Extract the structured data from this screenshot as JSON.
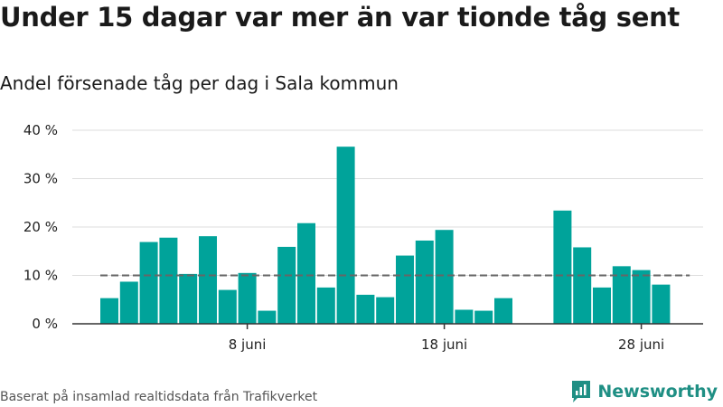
{
  "header": {
    "title": "Under 15 dagar var mer än var tionde tåg sent",
    "subtitle": "Andel försenade tåg per dag i Sala kommun"
  },
  "footer": {
    "source": "Baserat på insamlad realtidsdata från Trafikverket",
    "brand": "Newsworthy"
  },
  "colors": {
    "bar": "#00a39a",
    "reference": "#666666",
    "grid": "#dddddd",
    "brand": "#1f8f84"
  },
  "chart_data": {
    "type": "bar",
    "title": "Under 15 dagar var mer än var tionde tåg sent",
    "subtitle": "Andel försenade tåg per dag i Sala kommun",
    "xlabel": "",
    "ylabel": "",
    "ylim": [
      0,
      40
    ],
    "y_ticks": [
      0,
      10,
      20,
      30,
      40
    ],
    "y_tick_labels": [
      "0 %",
      "10 %",
      "20 %",
      "30 %",
      "40 %"
    ],
    "x_ticks": [
      8,
      18,
      28
    ],
    "x_tick_labels": [
      "8 juni",
      "18 juni",
      "28 juni"
    ],
    "grid": true,
    "reference_line": {
      "value": 10,
      "x_range": [
        1,
        30
      ]
    },
    "series": [
      {
        "day": [
          1,
          2,
          3,
          4,
          5,
          6,
          7,
          8,
          9,
          10,
          11,
          12,
          13,
          14,
          15,
          16,
          17,
          18,
          19,
          20,
          21,
          22,
          23,
          24,
          25,
          26,
          27,
          28,
          29,
          30
        ],
        "values": [
          5.3,
          8.7,
          16.9,
          17.8,
          10.3,
          18.1,
          7.0,
          10.5,
          2.7,
          15.9,
          20.8,
          7.5,
          36.6,
          6.0,
          5.5,
          14.1,
          17.2,
          19.4,
          2.9,
          2.7,
          5.3,
          null,
          null,
          23.4,
          15.8,
          7.5,
          11.9,
          11.1,
          8.1,
          null
        ]
      }
    ]
  }
}
